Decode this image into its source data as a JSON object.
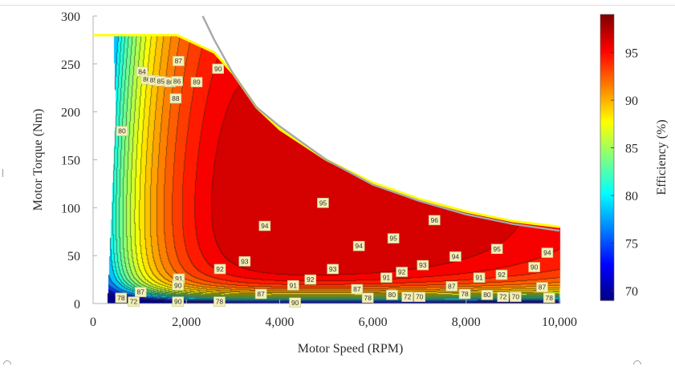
{
  "chart_data": {
    "type": "heatmap",
    "subtype": "filled-contour",
    "title": "",
    "xlabel": "Motor Speed (RPM)",
    "ylabel": "Motor Torque (Nm)",
    "colorbar_label": "Efficiency (%)",
    "xlim": [
      0,
      10000
    ],
    "ylim": [
      0,
      300
    ],
    "x_ticks": [
      0,
      2000,
      4000,
      6000,
      8000,
      10000
    ],
    "x_tick_labels": [
      "0",
      "2,000",
      "4,000",
      "6,000",
      "8,000",
      "10,000"
    ],
    "y_ticks": [
      0,
      50,
      100,
      150,
      200,
      250,
      300
    ],
    "y_tick_labels": [
      "0",
      "50",
      "100",
      "150",
      "200",
      "250",
      "300"
    ],
    "colorbar_range": [
      69,
      99
    ],
    "colorbar_ticks": [
      70,
      75,
      80,
      85,
      90,
      95
    ],
    "colorbar_tick_labels": [
      "70",
      "75",
      "80",
      "85",
      "90",
      "95"
    ],
    "colormap": "jet",
    "contour_levels": [
      70,
      72,
      74,
      76,
      78,
      80,
      81,
      82,
      83,
      84,
      85,
      86,
      87,
      88,
      89,
      90,
      91,
      92,
      93,
      94,
      95,
      96
    ],
    "grid": false,
    "legend": "colorbar-right",
    "max_torque_envelope": {
      "color": "#ffff00",
      "points": [
        [
          0,
          280
        ],
        [
          1800,
          280
        ],
        [
          2600,
          262
        ],
        [
          3000,
          240
        ],
        [
          3500,
          205
        ],
        [
          4000,
          182
        ],
        [
          5000,
          150
        ],
        [
          6000,
          126
        ],
        [
          7000,
          109
        ],
        [
          8000,
          96
        ],
        [
          9000,
          86
        ],
        [
          10000,
          80
        ]
      ]
    },
    "constant_power_curve": {
      "color": "#a8a8a8",
      "points": [
        [
          2350,
          300
        ],
        [
          2600,
          275
        ],
        [
          3000,
          240
        ],
        [
          3500,
          205
        ],
        [
          4000,
          185
        ],
        [
          5000,
          150
        ],
        [
          6000,
          124
        ],
        [
          7000,
          107
        ],
        [
          8000,
          93
        ],
        [
          9000,
          83
        ],
        [
          10000,
          76
        ]
      ]
    },
    "contour_labels": [
      {
        "value": "80",
        "x": 620,
        "y": 180
      },
      {
        "value": "84",
        "x": 1050,
        "y": 242
      },
      {
        "value": "86",
        "x": 1150,
        "y": 234
      },
      {
        "value": "85",
        "x": 1300,
        "y": 233
      },
      {
        "value": "85",
        "x": 1450,
        "y": 232
      },
      {
        "value": "86",
        "x": 1650,
        "y": 231
      },
      {
        "value": "86",
        "x": 1800,
        "y": 232
      },
      {
        "value": "87",
        "x": 1830,
        "y": 253
      },
      {
        "value": "88",
        "x": 1770,
        "y": 214
      },
      {
        "value": "89",
        "x": 2220,
        "y": 231
      },
      {
        "value": "90",
        "x": 2680,
        "y": 245
      },
      {
        "value": "95",
        "x": 4930,
        "y": 105
      },
      {
        "value": "94",
        "x": 3680,
        "y": 81
      },
      {
        "value": "94",
        "x": 5700,
        "y": 60
      },
      {
        "value": "95",
        "x": 6440,
        "y": 68
      },
      {
        "value": "96",
        "x": 7320,
        "y": 87
      },
      {
        "value": "94",
        "x": 7770,
        "y": 49
      },
      {
        "value": "95",
        "x": 8660,
        "y": 57
      },
      {
        "value": "94",
        "x": 9740,
        "y": 53
      },
      {
        "value": "93",
        "x": 3250,
        "y": 44
      },
      {
        "value": "92",
        "x": 2720,
        "y": 36
      },
      {
        "value": "93",
        "x": 5140,
        "y": 36
      },
      {
        "value": "92",
        "x": 4660,
        "y": 25
      },
      {
        "value": "93",
        "x": 7070,
        "y": 40
      },
      {
        "value": "92",
        "x": 6620,
        "y": 33
      },
      {
        "value": "90",
        "x": 9460,
        "y": 38
      },
      {
        "value": "92",
        "x": 8760,
        "y": 30
      },
      {
        "value": "91",
        "x": 1840,
        "y": 26
      },
      {
        "value": "90",
        "x": 1820,
        "y": 19
      },
      {
        "value": "91",
        "x": 4290,
        "y": 19
      },
      {
        "value": "91",
        "x": 6290,
        "y": 27
      },
      {
        "value": "91",
        "x": 8280,
        "y": 27
      },
      {
        "value": "87",
        "x": 1020,
        "y": 12
      },
      {
        "value": "87",
        "x": 3600,
        "y": 10
      },
      {
        "value": "87",
        "x": 5660,
        "y": 15
      },
      {
        "value": "87",
        "x": 7690,
        "y": 18
      },
      {
        "value": "87",
        "x": 9630,
        "y": 17
      },
      {
        "value": "78",
        "x": 600,
        "y": 6
      },
      {
        "value": "72",
        "x": 870,
        "y": 2
      },
      {
        "value": "90",
        "x": 1820,
        "y": 2
      },
      {
        "value": "78",
        "x": 2710,
        "y": 2
      },
      {
        "value": "90",
        "x": 4330,
        "y": 1
      },
      {
        "value": "78",
        "x": 5890,
        "y": 6
      },
      {
        "value": "80",
        "x": 6410,
        "y": 9
      },
      {
        "value": "72",
        "x": 6740,
        "y": 7
      },
      {
        "value": "70",
        "x": 7000,
        "y": 7
      },
      {
        "value": "78",
        "x": 7970,
        "y": 10
      },
      {
        "value": "80",
        "x": 8450,
        "y": 9
      },
      {
        "value": "72",
        "x": 8790,
        "y": 7
      },
      {
        "value": "70",
        "x": 9060,
        "y": 7
      },
      {
        "value": "78",
        "x": 9780,
        "y": 6
      }
    ]
  }
}
